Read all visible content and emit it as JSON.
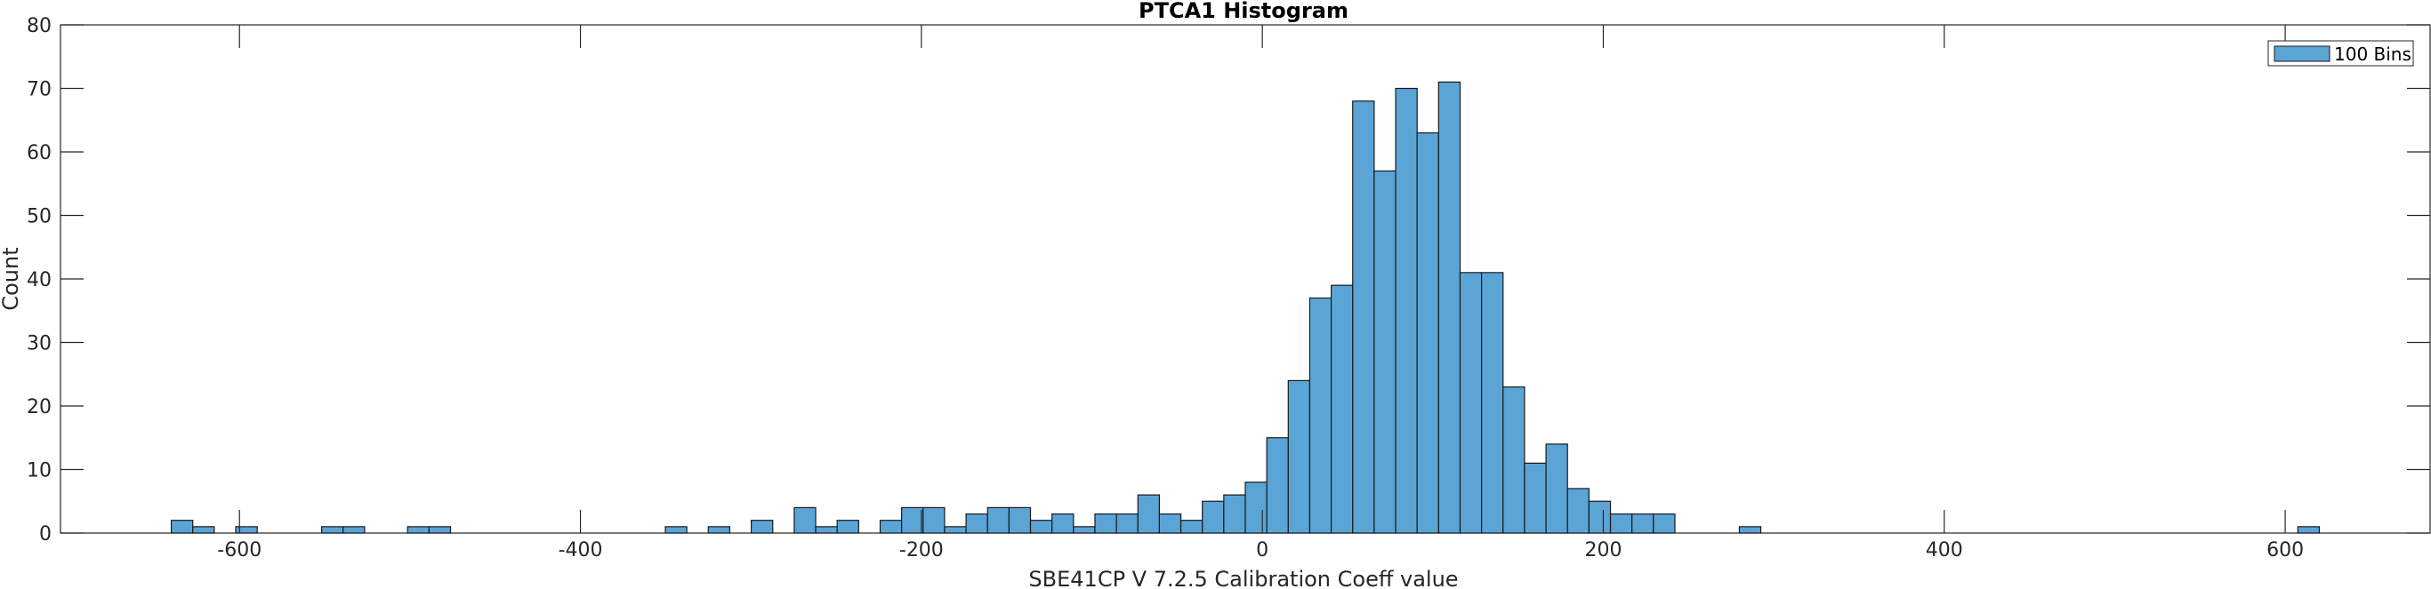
{
  "chart_data": {
    "type": "bar",
    "title": "PTCA1 Histogram",
    "xlabel": "SBE41CP V 7.2.5 Calibration Coeff value",
    "ylabel": "Count",
    "xlim": [
      -705,
      685
    ],
    "ylim": [
      0,
      80
    ],
    "xticks": [
      -600,
      -400,
      -200,
      0,
      200,
      400,
      600
    ],
    "xtick_labels": [
      "-600",
      "-400",
      "-200",
      "0",
      "200",
      "400",
      "600"
    ],
    "yticks": [
      0,
      10,
      20,
      30,
      40,
      50,
      60,
      70,
      80
    ],
    "ytick_labels": [
      "0",
      "10",
      "20",
      "30",
      "40",
      "50",
      "60",
      "70",
      "80"
    ],
    "bin_start": -640,
    "bin_width": 12.6,
    "legend": {
      "label": "100 Bins",
      "location": "top-right"
    },
    "bar_color": "#5ba4d6",
    "edge_color": "#1a1a1a",
    "series": [
      {
        "name": "100 Bins",
        "bins": [
          {
            "i": 0,
            "count": 2
          },
          {
            "i": 1,
            "count": 1
          },
          {
            "i": 3,
            "count": 1
          },
          {
            "i": 7,
            "count": 1
          },
          {
            "i": 8,
            "count": 1
          },
          {
            "i": 11,
            "count": 1
          },
          {
            "i": 12,
            "count": 1
          },
          {
            "i": 23,
            "count": 1
          },
          {
            "i": 25,
            "count": 1
          },
          {
            "i": 27,
            "count": 2
          },
          {
            "i": 29,
            "count": 4
          },
          {
            "i": 30,
            "count": 1
          },
          {
            "i": 31,
            "count": 2
          },
          {
            "i": 33,
            "count": 2
          },
          {
            "i": 34,
            "count": 4
          },
          {
            "i": 35,
            "count": 4
          },
          {
            "i": 36,
            "count": 1
          },
          {
            "i": 37,
            "count": 3
          },
          {
            "i": 38,
            "count": 4
          },
          {
            "i": 39,
            "count": 4
          },
          {
            "i": 40,
            "count": 2
          },
          {
            "i": 41,
            "count": 3
          },
          {
            "i": 42,
            "count": 1
          },
          {
            "i": 43,
            "count": 3
          },
          {
            "i": 44,
            "count": 3
          },
          {
            "i": 45,
            "count": 6
          },
          {
            "i": 46,
            "count": 3
          },
          {
            "i": 47,
            "count": 2
          },
          {
            "i": 48,
            "count": 5
          },
          {
            "i": 49,
            "count": 6
          },
          {
            "i": 50,
            "count": 8
          },
          {
            "i": 51,
            "count": 15
          },
          {
            "i": 52,
            "count": 24
          },
          {
            "i": 53,
            "count": 37
          },
          {
            "i": 54,
            "count": 39
          },
          {
            "i": 55,
            "count": 68
          },
          {
            "i": 56,
            "count": 57
          },
          {
            "i": 57,
            "count": 70
          },
          {
            "i": 58,
            "count": 63
          },
          {
            "i": 59,
            "count": 71
          },
          {
            "i": 60,
            "count": 41
          },
          {
            "i": 61,
            "count": 41
          },
          {
            "i": 62,
            "count": 23
          },
          {
            "i": 63,
            "count": 11
          },
          {
            "i": 64,
            "count": 14
          },
          {
            "i": 65,
            "count": 7
          },
          {
            "i": 66,
            "count": 5
          },
          {
            "i": 67,
            "count": 3
          },
          {
            "i": 68,
            "count": 3
          },
          {
            "i": 69,
            "count": 3
          },
          {
            "i": 73,
            "count": 1
          },
          {
            "i": 99,
            "count": 1
          }
        ]
      }
    ]
  }
}
